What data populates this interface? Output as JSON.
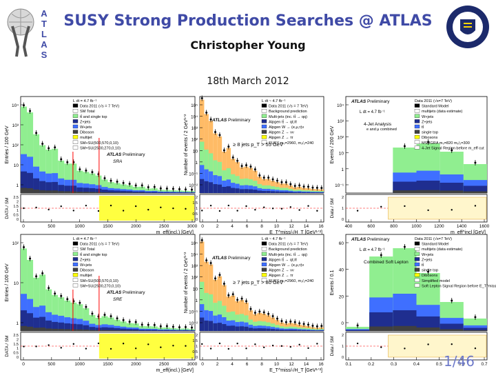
{
  "slide": {
    "title": "SUSY Strong Production Searches @ ATLAS",
    "author": "Christopher Young",
    "date": "18th March 2012",
    "page": "1/46",
    "atlas_letters": [
      "A",
      "T",
      "L",
      "A",
      "S"
    ]
  },
  "colors": {
    "title": "#3f4aa6",
    "page": "#6d79c9",
    "ttbar": "#90ee90",
    "zjets": "#1f2e8f",
    "wjets": "#3f6fff",
    "diboson": "#404040",
    "multijet": "#ffff00",
    "data_sm_band": "#ffff40",
    "qcd_orange": "#ffbb66"
  },
  "plots": [
    {
      "id": "tl",
      "ylabel": "Entries / 100 GeV",
      "ratio_label": "DATA / SM",
      "xlabel": "m_eff(incl.) [GeV]",
      "xticks": [
        "0",
        "500",
        "1000",
        "1500",
        "2000",
        "2500",
        "3000"
      ],
      "yticks": [
        "10⁴",
        "10³",
        "10²",
        "10",
        "1"
      ],
      "legend": [
        "L dt = 4.7 fb⁻¹",
        "Data 2011 (√s = 7 TeV)",
        "SM Total",
        "tt̄ and single top",
        "Z+jets",
        "W+jets",
        "Diboson",
        "multijet",
        "SM+SU(500,570,0,10)",
        "SM+SU(2500,270,0,10)"
      ],
      "atlas": "ATLAS Preliminary",
      "region": "SRA",
      "ratio_ticks": [
        "2.5",
        "2",
        "1.5",
        "1",
        "0.5",
        "0"
      ]
    },
    {
      "id": "tm",
      "ylabel": "Number of events / 2 GeV¹ᐟ²",
      "ratio_label": "",
      "xlabel": "E_T^miss/√H_T [GeV¹ᐟ²]",
      "xticks": [
        "0",
        "2",
        "4",
        "6",
        "8",
        "10",
        "12",
        "14",
        "16"
      ],
      "yticks": [
        "10⁵",
        "10⁴",
        "10³",
        "10²",
        "10",
        "1",
        "10⁻¹",
        "10⁻²"
      ],
      "legend": [
        "L dt ~ 4.7 fb⁻¹",
        "Data 2011 (√s = 7 TeV)",
        "Background prediction",
        "Multi-jets (inc. tt̄ → qq)",
        "Alpgen tt̄ → qℓ,ℓℓ",
        "Alpgen W → (e,μ,τ)ν",
        "Alpgen Z → νν",
        "Alpgen Z → ττ",
        "SUSY m₀=2960, m₁/₂=240"
      ],
      "atlas": "ATLAS Preliminary",
      "region": "≥ 8 jets p_T > 55 GeV",
      "ratio_ticks": [
        "2",
        "1.5",
        "1",
        "0.5",
        "0"
      ]
    },
    {
      "id": "tr",
      "ylabel": "Events / 200 GeV",
      "ratio_label": "Data / SM",
      "xlabel": "m_eff^incl [GeV]",
      "xticks": [
        "400",
        "600",
        "800",
        "1000",
        "1200",
        "1400",
        "1600"
      ],
      "yticks": [
        "10⁴",
        "10³",
        "10²",
        "10",
        "1",
        "10⁻¹"
      ],
      "legend": [
        "Data 2011 (√s=7 TeV)",
        "Standard Model",
        "multijets (data estimate)",
        "W+jets",
        "Z+jets",
        "tt̄",
        "single top",
        "Dibosons",
        "MSUGRA m₀=820 m₁/₂=300",
        "4-Jet Signal Region before m_eff cut"
      ],
      "atlas": "ATLAS Preliminary",
      "region": "4-Jet Analysis",
      "region2": "e and μ combined",
      "lumi": "L dt = 4.7 fb⁻¹",
      "ratio_ticks": [
        "2",
        "1",
        "0"
      ]
    },
    {
      "id": "bl",
      "ylabel": "Entries / 100 GeV",
      "ratio_label": "DATA / SM",
      "xlabel": "m_eff(incl.) [GeV]",
      "xticks": [
        "0",
        "500",
        "1000",
        "1500",
        "2000",
        "2500",
        "3000"
      ],
      "yticks": [
        "10²",
        "10",
        "1"
      ],
      "legend": [
        "L dt = 4.7 fb⁻¹",
        "Data 2011 (√s = 7 TeV)",
        "SM Total",
        "tt̄ and single top",
        "Z+jets",
        "W+jets",
        "Diboson",
        "multijet",
        "SM+SU(500,570,0,10)",
        "SM+SU(2500,270,0,10)"
      ],
      "atlas": "ATLAS Preliminary",
      "region": "SRE",
      "ratio_ticks": [
        "2.5",
        "2",
        "1.5",
        "1",
        "0.5",
        "0"
      ]
    },
    {
      "id": "bm",
      "ylabel": "Number of events / 2 GeV¹ᐟ²",
      "ratio_label": "",
      "xlabel": "E_T^miss/√H_T [GeV¹ᐟ²]",
      "xticks": [
        "0",
        "2",
        "4",
        "6",
        "8",
        "10",
        "12",
        "14",
        "16"
      ],
      "yticks": [
        "10⁵",
        "10⁴",
        "10³",
        "10²",
        "10",
        "1",
        "10⁻¹",
        "10⁻²"
      ],
      "legend": [
        "L dt ~ 4.7 fb⁻¹",
        "Data 2011 (√s = 7 TeV)",
        "Background prediction",
        "Multi-jets (inc. tt̄ → qq)",
        "Alpgen tt̄ → qℓ,ℓℓ",
        "Alpgen W → (e,μ,τ)ν",
        "Alpgen Z → νν",
        "Alpgen Z → ττ",
        "SUSY m₀=2960, m₁/₂=240"
      ],
      "atlas": "ATLAS Preliminary",
      "region": "≥ 7 jets p_T > 80 GeV",
      "ratio_ticks": [
        "2",
        "1.5",
        "1",
        "0.5",
        "0"
      ]
    },
    {
      "id": "br",
      "ylabel": "Events / 0.1",
      "ratio_label": "Data / SM",
      "xlabel": "",
      "xticks": [
        "0.1",
        "0.2",
        "0.3",
        "0.4",
        "0.5",
        "0.6",
        "0.7"
      ],
      "yticks": [
        "60",
        "40",
        "20",
        "0"
      ],
      "legend": [
        "Data 2011 (√s=7 TeV)",
        "Standard Model",
        "multijets (data estimate)",
        "W+jets",
        "Z+jets",
        "tt̄",
        "single top",
        "Dibosons",
        "Simplified model",
        "Soft Lepton Signal Region before E_T^miss/m_eff cut"
      ],
      "atlas": "ATLAS Preliminary",
      "region": "Combined Soft Lepton",
      "lumi": "L dt = 4.7 fb⁻¹",
      "ratio_ticks": [
        "2",
        "1",
        "0"
      ]
    }
  ]
}
